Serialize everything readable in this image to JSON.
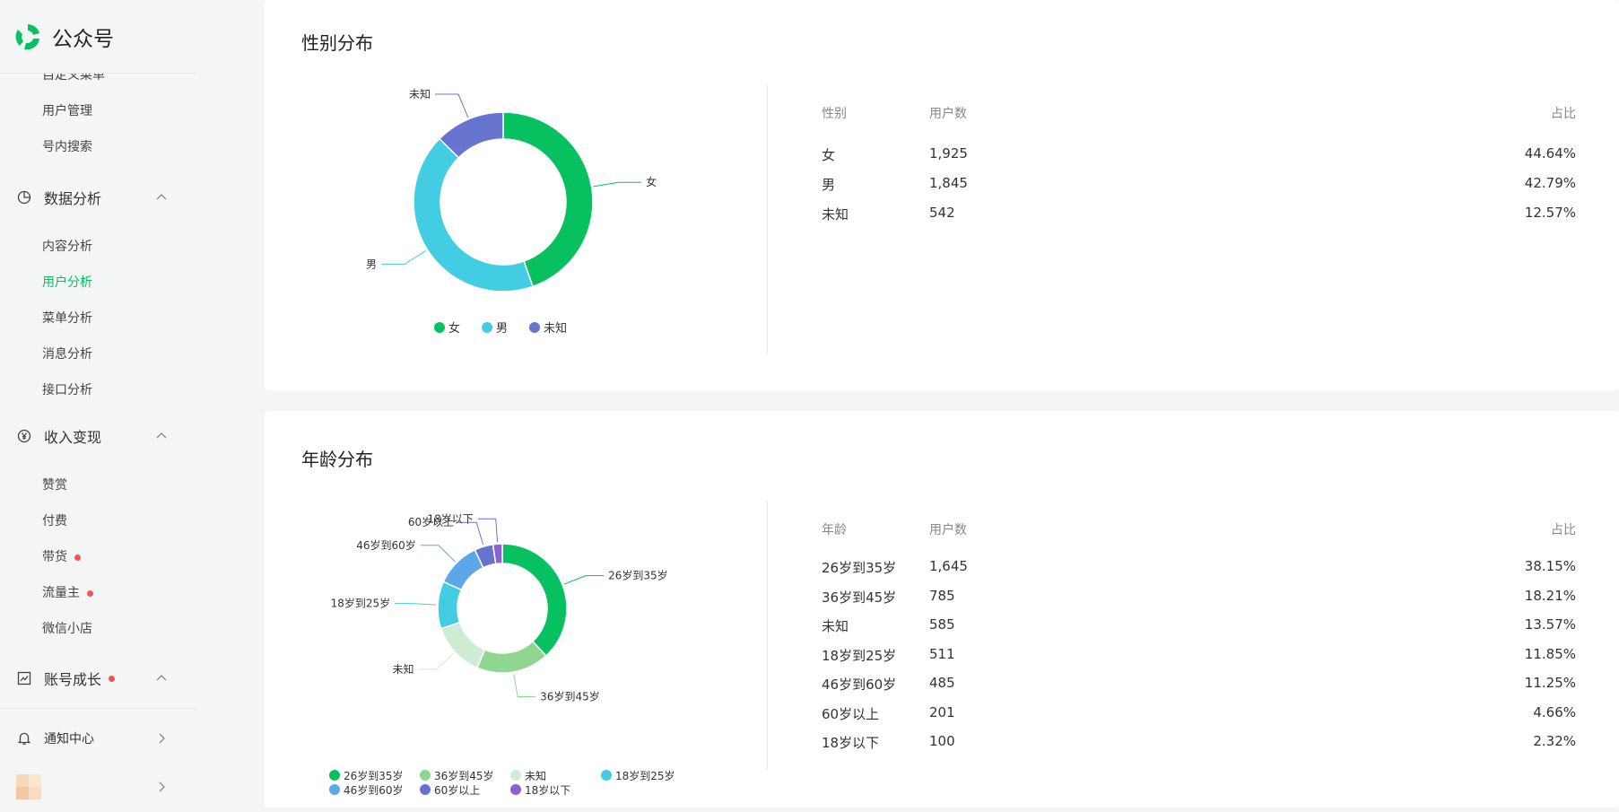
{
  "app": {
    "title": "公众号"
  },
  "sidebar": {
    "clipped_item": "自定义菜单",
    "top_items": [
      "用户管理",
      "号内搜索"
    ],
    "groups": [
      {
        "label": "数据分析",
        "icon": "pie-chart-icon",
        "items": [
          "内容分析",
          "用户分析",
          "菜单分析",
          "消息分析",
          "接口分析"
        ],
        "active_item": "用户分析"
      },
      {
        "label": "收入变现",
        "icon": "yen-circle-icon",
        "items": [
          "赞赏",
          "付费",
          "带货",
          "流量主",
          "微信小店"
        ],
        "dot_items": [
          "带货",
          "流量主"
        ]
      },
      {
        "label": "账号成长",
        "icon": "trend-chart-icon",
        "has_dot": true
      }
    ],
    "notification": "通知中心"
  },
  "colors": {
    "accent": "#07c160",
    "dot": "#fa5151"
  },
  "gender": {
    "title": "性别分布",
    "headers": {
      "category": "性别",
      "users": "用户数",
      "ratio": "占比"
    },
    "rows": [
      {
        "label": "女",
        "users": "1,925",
        "ratio": "44.64%"
      },
      {
        "label": "男",
        "users": "1,845",
        "ratio": "42.79%"
      },
      {
        "label": "未知",
        "users": "542",
        "ratio": "12.57%"
      }
    ]
  },
  "age": {
    "title": "年龄分布",
    "headers": {
      "category": "年龄",
      "users": "用户数",
      "ratio": "占比"
    },
    "rows": [
      {
        "label": "26岁到35岁",
        "users": "1,645",
        "ratio": "38.15%"
      },
      {
        "label": "36岁到45岁",
        "users": "785",
        "ratio": "18.21%"
      },
      {
        "label": "未知",
        "users": "585",
        "ratio": "13.57%"
      },
      {
        "label": "18岁到25岁",
        "users": "511",
        "ratio": "11.85%"
      },
      {
        "label": "46岁到60岁",
        "users": "485",
        "ratio": "11.25%"
      },
      {
        "label": "60岁以上",
        "users": "201",
        "ratio": "4.66%"
      },
      {
        "label": "18岁以下",
        "users": "100",
        "ratio": "2.32%"
      }
    ]
  },
  "chart_data": [
    {
      "type": "pie",
      "categories": [
        "女",
        "男",
        "未知"
      ],
      "values": [
        1925,
        1845,
        542
      ],
      "colors": [
        "#07c160",
        "#42cde3",
        "#6674d0"
      ],
      "legend": "bottom",
      "donut": true
    },
    {
      "type": "pie",
      "categories": [
        "26岁到35岁",
        "36岁到45岁",
        "未知",
        "18岁到25岁",
        "46岁到60岁",
        "60岁以上",
        "18岁以下"
      ],
      "values": [
        1645,
        785,
        585,
        511,
        485,
        201,
        100
      ],
      "colors": [
        "#07c160",
        "#8fd68f",
        "#cdecd3",
        "#42cde3",
        "#5ca6ea",
        "#6674d0",
        "#8e5ed3"
      ],
      "legend": "bottom",
      "donut": true
    }
  ]
}
